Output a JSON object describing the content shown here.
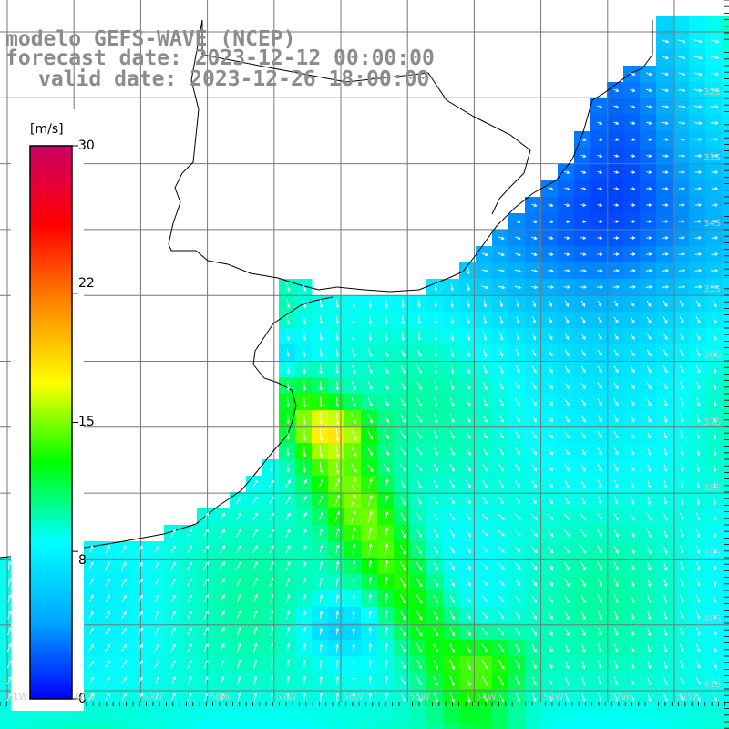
{
  "title": {
    "model": "modelo GEFS-WAVE (NCEP)",
    "forecast": "forecast date: 2023-12-12 00:00:00",
    "valid": "valid date: 2023-12-26 18:00:00"
  },
  "colorbar": {
    "unit": "[m/s]",
    "min": 0,
    "max": 30,
    "ticks": [
      {
        "value": 30,
        "label": "30"
      },
      {
        "value": 22,
        "label": "22"
      },
      {
        "value": 15,
        "label": "15"
      },
      {
        "value": 8,
        "label": "8"
      },
      {
        "value": 0,
        "label": "0"
      }
    ],
    "colors": [
      "#0000ff",
      "#00aaff",
      "#00ffff",
      "#00ff00",
      "#ffff00",
      "#ff8800",
      "#ff0000",
      "#cc0066"
    ]
  },
  "axes": {
    "lat_labels": [
      "32S",
      "33S",
      "34S",
      "35S",
      "36S",
      "37S",
      "38S",
      "39S",
      "40S",
      "41S"
    ],
    "lon_labels": [
      "61W",
      "60W",
      "59W",
      "58W",
      "57W",
      "56W",
      "55W",
      "54W",
      "53W",
      "52W",
      "51W"
    ]
  },
  "colors": {
    "grid": "#777777",
    "coast": "#000000",
    "arrows": "#ffffff",
    "title": "#8c8c8c"
  }
}
